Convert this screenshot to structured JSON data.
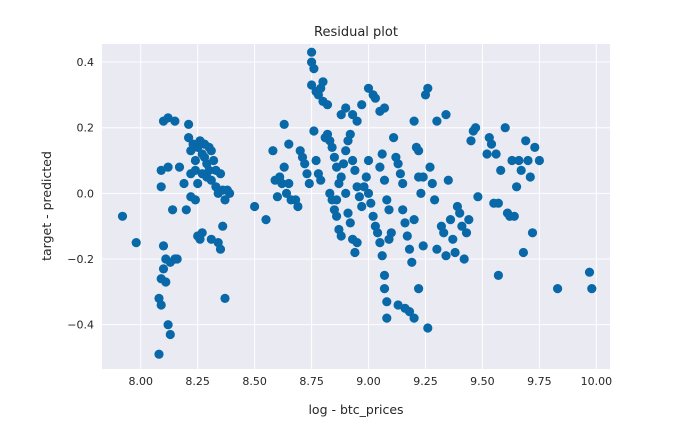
{
  "chart_data": {
    "type": "scatter",
    "title": "Residual plot",
    "xlabel": "log - btc_prices",
    "ylabel": "target - predicted",
    "xlim": [
      7.83,
      10.06
    ],
    "ylim": [
      -0.535,
      0.455
    ],
    "xticks": [
      {
        "value": 8.0,
        "label": "8.00"
      },
      {
        "value": 8.25,
        "label": "8.25"
      },
      {
        "value": 8.5,
        "label": "8.50"
      },
      {
        "value": 8.75,
        "label": "8.75"
      },
      {
        "value": 9.0,
        "label": "9.00"
      },
      {
        "value": 9.25,
        "label": "9.25"
      },
      {
        "value": 9.5,
        "label": "9.50"
      },
      {
        "value": 9.75,
        "label": "9.75"
      },
      {
        "value": 10.0,
        "label": "10.00"
      }
    ],
    "yticks": [
      {
        "value": -0.4,
        "label": "−0.4"
      },
      {
        "value": -0.2,
        "label": "−0.2"
      },
      {
        "value": 0.0,
        "label": "0.0"
      },
      {
        "value": 0.2,
        "label": "0.2"
      },
      {
        "value": 0.4,
        "label": "0.4"
      }
    ],
    "grid": true,
    "background": "#eaeaf2",
    "grid_color": "#ffffff",
    "marker_color": "#0868a8",
    "points": [
      [
        7.92,
        -0.07
      ],
      [
        7.98,
        -0.15
      ],
      [
        8.08,
        -0.49
      ],
      [
        8.08,
        -0.32
      ],
      [
        8.09,
        -0.26
      ],
      [
        8.09,
        -0.34
      ],
      [
        8.1,
        -0.16
      ],
      [
        8.1,
        -0.23
      ],
      [
        8.11,
        -0.27
      ],
      [
        8.11,
        -0.2
      ],
      [
        8.12,
        -0.4
      ],
      [
        8.13,
        -0.43
      ],
      [
        8.13,
        -0.21
      ],
      [
        8.15,
        -0.2
      ],
      [
        8.16,
        -0.2
      ],
      [
        8.09,
        0.02
      ],
      [
        8.09,
        0.07
      ],
      [
        8.1,
        0.22
      ],
      [
        8.12,
        0.23
      ],
      [
        8.15,
        0.22
      ],
      [
        8.12,
        0.08
      ],
      [
        8.14,
        -0.05
      ],
      [
        8.17,
        0.08
      ],
      [
        8.19,
        0.03
      ],
      [
        8.2,
        -0.05
      ],
      [
        8.21,
        0.21
      ],
      [
        8.21,
        0.17
      ],
      [
        8.22,
        0.13
      ],
      [
        8.23,
        0.15
      ],
      [
        8.24,
        0.1
      ],
      [
        8.24,
        0.07
      ],
      [
        8.25,
        0.14
      ],
      [
        8.25,
        0.03
      ],
      [
        8.26,
        0.16
      ],
      [
        8.27,
        0.12
      ],
      [
        8.27,
        0.06
      ],
      [
        8.28,
        0.15
      ],
      [
        8.28,
        0.11
      ],
      [
        8.29,
        0.09
      ],
      [
        8.29,
        0.05
      ],
      [
        8.3,
        0.14
      ],
      [
        8.3,
        0.07
      ],
      [
        8.31,
        0.13
      ],
      [
        8.31,
        0.04
      ],
      [
        8.32,
        0.1
      ],
      [
        8.33,
        0.07
      ],
      [
        8.33,
        0.02
      ],
      [
        8.34,
        0.0
      ],
      [
        8.35,
        0.06
      ],
      [
        8.36,
        0.01
      ],
      [
        8.37,
        -0.02
      ],
      [
        8.38,
        0.01
      ],
      [
        8.39,
        0.0
      ],
      [
        8.25,
        -0.13
      ],
      [
        8.26,
        -0.14
      ],
      [
        8.27,
        -0.12
      ],
      [
        8.31,
        -0.14
      ],
      [
        8.34,
        -0.15
      ],
      [
        8.35,
        -0.17
      ],
      [
        8.36,
        -0.1
      ],
      [
        8.37,
        -0.32
      ],
      [
        8.22,
        -0.01
      ],
      [
        8.24,
        -0.02
      ],
      [
        8.22,
        0.06
      ],
      [
        8.5,
        -0.04
      ],
      [
        8.55,
        -0.08
      ],
      [
        8.58,
        0.13
      ],
      [
        8.59,
        0.04
      ],
      [
        8.6,
        -0.01
      ],
      [
        8.61,
        0.05
      ],
      [
        8.62,
        0.03
      ],
      [
        8.63,
        0.21
      ],
      [
        8.63,
        0.08
      ],
      [
        8.64,
        0.0
      ],
      [
        8.65,
        0.03
      ],
      [
        8.66,
        -0.02
      ],
      [
        8.65,
        0.15
      ],
      [
        8.68,
        -0.02
      ],
      [
        8.69,
        -0.04
      ],
      [
        8.7,
        0.13
      ],
      [
        8.71,
        0.11
      ],
      [
        8.72,
        0.09
      ],
      [
        8.73,
        0.06
      ],
      [
        8.74,
        0.03
      ],
      [
        8.75,
        0.43
      ],
      [
        8.75,
        0.4
      ],
      [
        8.76,
        0.38
      ],
      [
        8.75,
        0.33
      ],
      [
        8.77,
        0.31
      ],
      [
        8.78,
        0.3
      ],
      [
        8.79,
        0.32
      ],
      [
        8.8,
        0.34
      ],
      [
        8.8,
        0.28
      ],
      [
        8.82,
        0.27
      ],
      [
        8.76,
        0.19
      ],
      [
        8.77,
        0.1
      ],
      [
        8.78,
        0.06
      ],
      [
        8.79,
        0.04
      ],
      [
        8.81,
        0.17
      ],
      [
        8.82,
        0.18
      ],
      [
        8.83,
        0.16
      ],
      [
        8.84,
        0.14
      ],
      [
        8.85,
        0.11
      ],
      [
        8.86,
        0.08
      ],
      [
        8.83,
        0.0
      ],
      [
        8.84,
        -0.02
      ],
      [
        8.85,
        -0.05
      ],
      [
        8.86,
        -0.07
      ],
      [
        8.87,
        -0.11
      ],
      [
        8.88,
        -0.13
      ],
      [
        8.86,
        -0.02
      ],
      [
        8.87,
        0.03
      ],
      [
        8.88,
        0.05
      ],
      [
        8.89,
        0.09
      ],
      [
        8.9,
        0.13
      ],
      [
        8.91,
        0.16
      ],
      [
        8.92,
        0.18
      ],
      [
        8.93,
        0.1
      ],
      [
        8.94,
        0.07
      ],
      [
        8.95,
        0.02
      ],
      [
        8.96,
        -0.01
      ],
      [
        8.97,
        -0.04
      ],
      [
        8.9,
        0.0
      ],
      [
        8.91,
        -0.06
      ],
      [
        8.92,
        -0.09
      ],
      [
        8.93,
        -0.14
      ],
      [
        8.94,
        -0.18
      ],
      [
        8.95,
        -0.15
      ],
      [
        8.88,
        0.24
      ],
      [
        8.9,
        0.26
      ],
      [
        8.93,
        0.24
      ],
      [
        8.95,
        0.22
      ],
      [
        8.97,
        0.27
      ],
      [
        8.98,
        0.02
      ],
      [
        8.99,
        0.05
      ],
      [
        9.0,
        0.1
      ],
      [
        9.0,
        0.0
      ],
      [
        9.01,
        -0.03
      ],
      [
        9.02,
        -0.07
      ],
      [
        9.03,
        -0.1
      ],
      [
        9.04,
        -0.12
      ],
      [
        9.05,
        0.08
      ],
      [
        9.06,
        0.12
      ],
      [
        9.07,
        0.04
      ],
      [
        9.08,
        -0.02
      ],
      [
        9.09,
        -0.05
      ],
      [
        9.0,
        0.32
      ],
      [
        9.02,
        0.3
      ],
      [
        9.03,
        0.29
      ],
      [
        9.05,
        0.25
      ],
      [
        9.07,
        0.26
      ],
      [
        9.05,
        -0.15
      ],
      [
        9.06,
        -0.19
      ],
      [
        9.07,
        -0.25
      ],
      [
        9.07,
        -0.29
      ],
      [
        9.08,
        -0.33
      ],
      [
        9.08,
        -0.38
      ],
      [
        9.09,
        -0.14
      ],
      [
        9.1,
        -0.12
      ],
      [
        9.11,
        0.17
      ],
      [
        9.12,
        0.11
      ],
      [
        9.13,
        0.09
      ],
      [
        9.14,
        0.06
      ],
      [
        9.15,
        0.03
      ],
      [
        9.15,
        -0.05
      ],
      [
        9.16,
        -0.09
      ],
      [
        9.17,
        -0.13
      ],
      [
        9.18,
        -0.17
      ],
      [
        9.19,
        -0.21
      ],
      [
        9.2,
        -0.08
      ],
      [
        9.2,
        0.22
      ],
      [
        9.22,
        0.13
      ],
      [
        9.22,
        0.05
      ],
      [
        9.23,
        0.0
      ],
      [
        9.16,
        -0.35
      ],
      [
        9.18,
        -0.36
      ],
      [
        9.2,
        -0.38
      ],
      [
        9.13,
        -0.34
      ],
      [
        9.21,
        0.14
      ],
      [
        9.24,
        0.05
      ],
      [
        9.25,
        0.3
      ],
      [
        9.26,
        0.32
      ],
      [
        9.27,
        0.08
      ],
      [
        9.28,
        0.03
      ],
      [
        9.29,
        -0.02
      ],
      [
        9.3,
        0.22
      ],
      [
        9.32,
        -0.1
      ],
      [
        9.33,
        -0.12
      ],
      [
        9.34,
        0.24
      ],
      [
        9.35,
        0.04
      ],
      [
        9.36,
        -0.08
      ],
      [
        9.37,
        -0.14
      ],
      [
        9.38,
        -0.18
      ],
      [
        9.39,
        -0.04
      ],
      [
        9.4,
        -0.06
      ],
      [
        9.41,
        -0.1
      ],
      [
        9.42,
        -0.2
      ],
      [
        9.43,
        -0.12
      ],
      [
        9.44,
        -0.08
      ],
      [
        9.45,
        0.16
      ],
      [
        9.46,
        0.19
      ],
      [
        9.47,
        0.2
      ],
      [
        9.48,
        -0.01
      ],
      [
        9.3,
        -0.17
      ],
      [
        9.34,
        -0.19
      ],
      [
        9.22,
        -0.29
      ],
      [
        9.24,
        -0.16
      ],
      [
        9.26,
        -0.41
      ],
      [
        9.52,
        0.12
      ],
      [
        9.53,
        0.17
      ],
      [
        9.54,
        0.15
      ],
      [
        9.55,
        -0.03
      ],
      [
        9.56,
        0.12
      ],
      [
        9.57,
        -0.03
      ],
      [
        9.58,
        0.07
      ],
      [
        9.6,
        0.2
      ],
      [
        9.61,
        -0.06
      ],
      [
        9.62,
        -0.07
      ],
      [
        9.63,
        0.1
      ],
      [
        9.64,
        -0.07
      ],
      [
        9.65,
        0.02
      ],
      [
        9.66,
        0.1
      ],
      [
        9.67,
        0.07
      ],
      [
        9.68,
        -0.18
      ],
      [
        9.69,
        0.16
      ],
      [
        9.7,
        0.1
      ],
      [
        9.71,
        0.05
      ],
      [
        9.72,
        -0.12
      ],
      [
        9.73,
        0.14
      ],
      [
        9.75,
        0.1
      ],
      [
        9.57,
        -0.25
      ],
      [
        9.83,
        -0.29
      ],
      [
        9.97,
        -0.24
      ],
      [
        9.98,
        -0.29
      ]
    ]
  }
}
